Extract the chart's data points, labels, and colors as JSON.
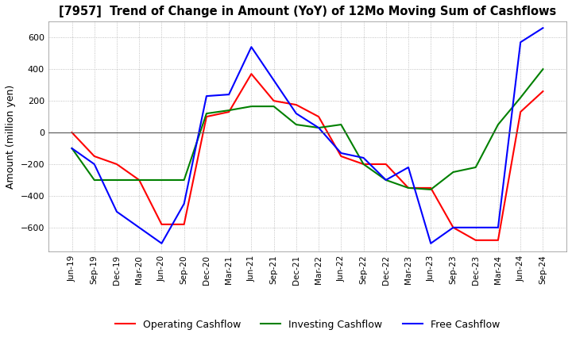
{
  "title": "[7957]  Trend of Change in Amount (YoY) of 12Mo Moving Sum of Cashflows",
  "ylabel": "Amount (million yen)",
  "ylim": [
    -750,
    700
  ],
  "yticks": [
    -600,
    -400,
    -200,
    0,
    200,
    400,
    600
  ],
  "x_labels": [
    "Jun-19",
    "Sep-19",
    "Dec-19",
    "Mar-20",
    "Jun-20",
    "Sep-20",
    "Dec-20",
    "Mar-21",
    "Jun-21",
    "Sep-21",
    "Dec-21",
    "Mar-22",
    "Jun-22",
    "Sep-22",
    "Dec-22",
    "Mar-23",
    "Jun-23",
    "Sep-23",
    "Dec-23",
    "Mar-24",
    "Jun-24",
    "Sep-24"
  ],
  "operating": [
    0,
    -150,
    -200,
    -300,
    -580,
    -580,
    100,
    130,
    370,
    200,
    175,
    100,
    -150,
    -200,
    -200,
    -350,
    -350,
    -600,
    -680,
    -680,
    130,
    260
  ],
  "investing": [
    -100,
    -300,
    -300,
    -300,
    -300,
    -300,
    120,
    140,
    165,
    165,
    50,
    30,
    50,
    -200,
    -300,
    -350,
    -360,
    -250,
    -220,
    50,
    220,
    400
  ],
  "free": [
    -100,
    -200,
    -500,
    -600,
    -700,
    -450,
    230,
    240,
    540,
    330,
    120,
    30,
    -130,
    -160,
    -300,
    -220,
    -700,
    -600,
    -600,
    -600,
    570,
    660
  ],
  "operating_color": "#ff0000",
  "investing_color": "#008000",
  "free_color": "#0000ff",
  "background_color": "#ffffff",
  "grid_color": "#b0b0b0"
}
